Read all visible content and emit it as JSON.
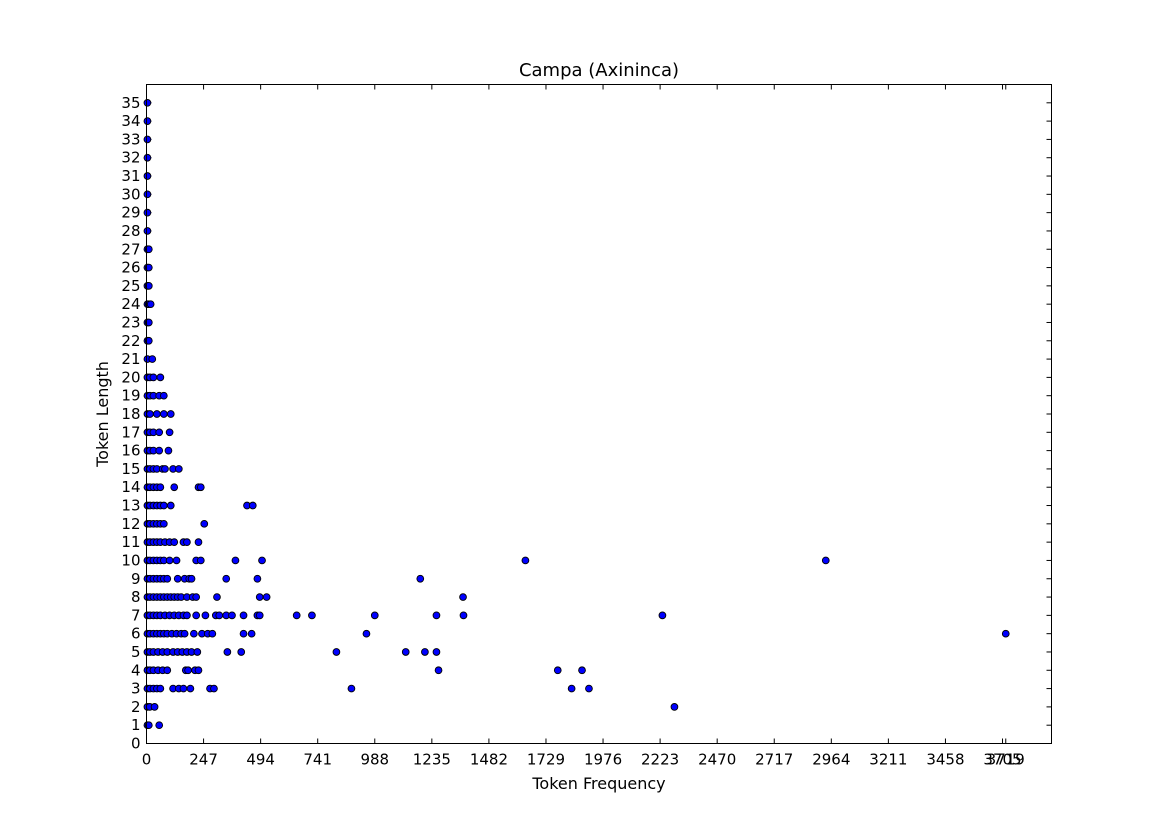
{
  "chart_data": {
    "type": "scatter",
    "title": "Campa (Axininca)",
    "xlabel": "Token Frequency",
    "ylabel": "Token Length",
    "xlim": [
      0,
      3917
    ],
    "ylim": [
      0,
      36
    ],
    "x_ticks": [
      "0",
      "247",
      "494",
      "741",
      "988",
      "1235",
      "1482",
      "1729",
      "1976",
      "2223",
      "2470",
      "2717",
      "2964",
      "3211",
      "3458",
      "3705",
      "3719"
    ],
    "x_tick_values": [
      0,
      247,
      494,
      741,
      988,
      1235,
      1482,
      1729,
      1976,
      2223,
      2470,
      2717,
      2964,
      3211,
      3458,
      3705,
      3719
    ],
    "y_ticks": [
      "0",
      "1",
      "2",
      "3",
      "4",
      "5",
      "6",
      "7",
      "8",
      "9",
      "10",
      "11",
      "12",
      "13",
      "14",
      "15",
      "16",
      "17",
      "18",
      "19",
      "20",
      "21",
      "22",
      "23",
      "24",
      "25",
      "26",
      "27",
      "28",
      "29",
      "30",
      "31",
      "32",
      "33",
      "34",
      "35"
    ],
    "grid": false,
    "marker_color": "#0000ff",
    "marker_edge_color": "#000000",
    "series": [
      {
        "points": [
          [
            4,
            1
          ],
          [
            10,
            1
          ],
          [
            55,
            1
          ],
          [
            4,
            2
          ],
          [
            14,
            2
          ],
          [
            35,
            2
          ],
          [
            2285,
            2
          ],
          [
            4,
            3
          ],
          [
            15,
            3
          ],
          [
            30,
            3
          ],
          [
            45,
            3
          ],
          [
            60,
            3
          ],
          [
            115,
            3
          ],
          [
            140,
            3
          ],
          [
            160,
            3
          ],
          [
            190,
            3
          ],
          [
            275,
            3
          ],
          [
            292,
            3
          ],
          [
            887,
            3
          ],
          [
            1840,
            3
          ],
          [
            1915,
            3
          ],
          [
            4,
            4
          ],
          [
            15,
            4
          ],
          [
            30,
            4
          ],
          [
            50,
            4
          ],
          [
            70,
            4
          ],
          [
            90,
            4
          ],
          [
            170,
            4
          ],
          [
            180,
            4
          ],
          [
            210,
            4
          ],
          [
            225,
            4
          ],
          [
            1264,
            4
          ],
          [
            1780,
            4
          ],
          [
            1885,
            4
          ],
          [
            4,
            5
          ],
          [
            15,
            5
          ],
          [
            30,
            5
          ],
          [
            50,
            5
          ],
          [
            70,
            5
          ],
          [
            90,
            5
          ],
          [
            115,
            5
          ],
          [
            135,
            5
          ],
          [
            155,
            5
          ],
          [
            175,
            5
          ],
          [
            195,
            5
          ],
          [
            220,
            5
          ],
          [
            350,
            5
          ],
          [
            410,
            5
          ],
          [
            822,
            5
          ],
          [
            1122,
            5
          ],
          [
            1205,
            5
          ],
          [
            1255,
            5
          ],
          [
            4,
            6
          ],
          [
            15,
            6
          ],
          [
            30,
            6
          ],
          [
            45,
            6
          ],
          [
            60,
            6
          ],
          [
            75,
            6
          ],
          [
            90,
            6
          ],
          [
            110,
            6
          ],
          [
            130,
            6
          ],
          [
            150,
            6
          ],
          [
            165,
            6
          ],
          [
            205,
            6
          ],
          [
            240,
            6
          ],
          [
            265,
            6
          ],
          [
            285,
            6
          ],
          [
            420,
            6
          ],
          [
            455,
            6
          ],
          [
            952,
            6
          ],
          [
            3719,
            6
          ],
          [
            4,
            7
          ],
          [
            15,
            7
          ],
          [
            30,
            7
          ],
          [
            45,
            7
          ],
          [
            60,
            7
          ],
          [
            80,
            7
          ],
          [
            100,
            7
          ],
          [
            120,
            7
          ],
          [
            140,
            7
          ],
          [
            160,
            7
          ],
          [
            175,
            7
          ],
          [
            215,
            7
          ],
          [
            255,
            7
          ],
          [
            300,
            7
          ],
          [
            315,
            7
          ],
          [
            345,
            7
          ],
          [
            370,
            7
          ],
          [
            420,
            7
          ],
          [
            480,
            7
          ],
          [
            490,
            7
          ],
          [
            650,
            7
          ],
          [
            716,
            7
          ],
          [
            988,
            7
          ],
          [
            1255,
            7
          ],
          [
            1372,
            7
          ],
          [
            2233,
            7
          ],
          [
            4,
            8
          ],
          [
            15,
            8
          ],
          [
            30,
            8
          ],
          [
            45,
            8
          ],
          [
            60,
            8
          ],
          [
            75,
            8
          ],
          [
            90,
            8
          ],
          [
            105,
            8
          ],
          [
            120,
            8
          ],
          [
            135,
            8
          ],
          [
            150,
            8
          ],
          [
            175,
            8
          ],
          [
            200,
            8
          ],
          [
            215,
            8
          ],
          [
            305,
            8
          ],
          [
            490,
            8
          ],
          [
            520,
            8
          ],
          [
            1370,
            8
          ],
          [
            4,
            9
          ],
          [
            15,
            9
          ],
          [
            30,
            9
          ],
          [
            45,
            9
          ],
          [
            60,
            9
          ],
          [
            75,
            9
          ],
          [
            90,
            9
          ],
          [
            135,
            9
          ],
          [
            165,
            9
          ],
          [
            185,
            9
          ],
          [
            195,
            9
          ],
          [
            345,
            9
          ],
          [
            480,
            9
          ],
          [
            1185,
            9
          ],
          [
            4,
            10
          ],
          [
            15,
            10
          ],
          [
            30,
            10
          ],
          [
            45,
            10
          ],
          [
            60,
            10
          ],
          [
            75,
            10
          ],
          [
            100,
            10
          ],
          [
            130,
            10
          ],
          [
            215,
            10
          ],
          [
            235,
            10
          ],
          [
            385,
            10
          ],
          [
            500,
            10
          ],
          [
            1640,
            10
          ],
          [
            2940,
            10
          ],
          [
            4,
            11
          ],
          [
            15,
            11
          ],
          [
            30,
            11
          ],
          [
            45,
            11
          ],
          [
            60,
            11
          ],
          [
            80,
            11
          ],
          [
            100,
            11
          ],
          [
            120,
            11
          ],
          [
            160,
            11
          ],
          [
            175,
            11
          ],
          [
            225,
            11
          ],
          [
            4,
            12
          ],
          [
            15,
            12
          ],
          [
            30,
            12
          ],
          [
            45,
            12
          ],
          [
            60,
            12
          ],
          [
            75,
            12
          ],
          [
            250,
            12
          ],
          [
            4,
            13
          ],
          [
            15,
            13
          ],
          [
            30,
            13
          ],
          [
            45,
            13
          ],
          [
            60,
            13
          ],
          [
            75,
            13
          ],
          [
            105,
            13
          ],
          [
            435,
            13
          ],
          [
            460,
            13
          ],
          [
            4,
            14
          ],
          [
            15,
            14
          ],
          [
            30,
            14
          ],
          [
            45,
            14
          ],
          [
            60,
            14
          ],
          [
            120,
            14
          ],
          [
            225,
            14
          ],
          [
            235,
            14
          ],
          [
            4,
            15
          ],
          [
            15,
            15
          ],
          [
            30,
            15
          ],
          [
            45,
            15
          ],
          [
            70,
            15
          ],
          [
            80,
            15
          ],
          [
            115,
            15
          ],
          [
            140,
            15
          ],
          [
            4,
            16
          ],
          [
            15,
            16
          ],
          [
            30,
            16
          ],
          [
            55,
            16
          ],
          [
            95,
            16
          ],
          [
            4,
            17
          ],
          [
            15,
            17
          ],
          [
            30,
            17
          ],
          [
            55,
            17
          ],
          [
            100,
            17
          ],
          [
            4,
            18
          ],
          [
            15,
            18
          ],
          [
            45,
            18
          ],
          [
            75,
            18
          ],
          [
            105,
            18
          ],
          [
            4,
            19
          ],
          [
            15,
            19
          ],
          [
            30,
            19
          ],
          [
            55,
            19
          ],
          [
            75,
            19
          ],
          [
            4,
            20
          ],
          [
            15,
            20
          ],
          [
            30,
            20
          ],
          [
            60,
            20
          ],
          [
            4,
            21
          ],
          [
            25,
            21
          ],
          [
            4,
            22
          ],
          [
            10,
            22
          ],
          [
            4,
            23
          ],
          [
            10,
            23
          ],
          [
            4,
            24
          ],
          [
            10,
            24
          ],
          [
            18,
            24
          ],
          [
            4,
            25
          ],
          [
            10,
            25
          ],
          [
            4,
            26
          ],
          [
            10,
            26
          ],
          [
            4,
            27
          ],
          [
            10,
            27
          ],
          [
            4,
            28
          ],
          [
            4,
            29
          ],
          [
            4,
            30
          ],
          [
            4,
            31
          ],
          [
            4,
            32
          ],
          [
            4,
            33
          ],
          [
            4,
            34
          ],
          [
            4,
            35
          ]
        ]
      }
    ]
  }
}
